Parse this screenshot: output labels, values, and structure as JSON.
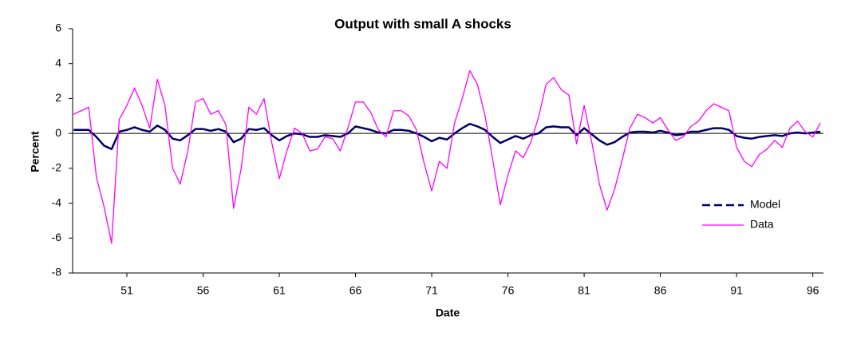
{
  "chart_data": {
    "type": "line",
    "title": "Output with small A shocks",
    "x_label": "Date",
    "y_label": "Percent",
    "x": [
      47.5,
      48,
      48.5,
      49,
      49.5,
      50,
      50.5,
      51,
      51.5,
      52,
      52.5,
      53,
      53.5,
      54,
      54.5,
      55,
      55.5,
      56,
      56.5,
      57,
      57.5,
      58,
      58.5,
      59,
      59.5,
      60,
      60.5,
      61,
      61.5,
      62,
      62.5,
      63,
      63.5,
      64,
      64.5,
      65,
      65.5,
      66,
      66.5,
      67,
      67.5,
      68,
      68.5,
      69,
      69.5,
      70,
      70.5,
      71,
      71.5,
      72,
      72.5,
      73,
      73.5,
      74,
      74.5,
      75,
      75.5,
      76,
      76.5,
      77,
      77.5,
      78,
      78.5,
      79,
      79.5,
      80,
      80.5,
      81,
      81.5,
      82,
      82.5,
      83,
      83.5,
      84,
      84.5,
      85,
      85.5,
      86,
      86.5,
      87,
      87.5,
      88,
      88.5,
      89,
      89.5,
      90,
      90.5,
      91,
      91.5,
      92,
      92.5,
      93,
      93.5,
      94,
      94.5,
      95,
      95.5,
      96,
      96.5
    ],
    "series": [
      {
        "name": "Model",
        "color": "#000066",
        "values": [
          0.2,
          0.2,
          0.2,
          -0.2,
          -0.7,
          -0.9,
          0.1,
          0.2,
          0.35,
          0.2,
          0.1,
          0.45,
          0.2,
          -0.3,
          -0.4,
          -0.1,
          0.25,
          0.25,
          0.15,
          0.25,
          0.1,
          -0.5,
          -0.3,
          0.25,
          0.2,
          0.3,
          -0.1,
          -0.4,
          -0.15,
          0.0,
          -0.05,
          -0.2,
          -0.2,
          -0.1,
          -0.15,
          -0.2,
          0.0,
          0.4,
          0.3,
          0.2,
          0.05,
          0.0,
          0.2,
          0.2,
          0.15,
          0.0,
          -0.2,
          -0.45,
          -0.25,
          -0.35,
          0.0,
          0.3,
          0.55,
          0.4,
          0.2,
          -0.2,
          -0.55,
          -0.35,
          -0.15,
          -0.3,
          -0.1,
          0.0,
          0.35,
          0.4,
          0.35,
          0.35,
          -0.1,
          0.3,
          -0.05,
          -0.4,
          -0.65,
          -0.5,
          -0.2,
          0.05,
          0.1,
          0.1,
          0.05,
          0.15,
          0.05,
          -0.1,
          -0.05,
          0.1,
          0.1,
          0.2,
          0.3,
          0.3,
          0.2,
          -0.15,
          -0.25,
          -0.3,
          -0.2,
          -0.15,
          -0.1,
          -0.15,
          0.0,
          0.05,
          0.0,
          0.05,
          0.1
        ]
      },
      {
        "name": "Data",
        "color": "#ff00ff",
        "values": [
          1.1,
          1.3,
          1.5,
          -2.5,
          -4.2,
          -6.3,
          0.8,
          1.6,
          2.6,
          1.6,
          0.3,
          3.1,
          1.6,
          -2.0,
          -2.9,
          -1.0,
          1.8,
          2.0,
          1.1,
          1.3,
          0.5,
          -4.3,
          -2.0,
          1.5,
          1.1,
          2.0,
          -0.5,
          -2.6,
          -1.0,
          0.3,
          0.0,
          -1.0,
          -0.9,
          -0.2,
          -0.3,
          -1.0,
          0.3,
          1.8,
          1.8,
          1.2,
          0.2,
          -0.2,
          1.3,
          1.3,
          1.0,
          0.2,
          -1.7,
          -3.3,
          -1.6,
          -2.0,
          0.6,
          2.0,
          3.6,
          2.8,
          1.0,
          -1.5,
          -4.1,
          -2.4,
          -1.0,
          -1.4,
          -0.5,
          0.9,
          2.8,
          3.2,
          2.5,
          2.2,
          -0.6,
          1.6,
          -0.5,
          -2.9,
          -4.4,
          -3.2,
          -1.5,
          0.3,
          1.1,
          0.9,
          0.6,
          0.9,
          0.2,
          -0.4,
          -0.2,
          0.4,
          0.7,
          1.3,
          1.7,
          1.5,
          1.3,
          -0.8,
          -1.6,
          -1.9,
          -1.2,
          -0.9,
          -0.4,
          -0.8,
          0.3,
          0.7,
          0.1,
          -0.2,
          0.6
        ]
      }
    ],
    "xlim": [
      47.44,
      96.7
    ],
    "xticks": [
      51,
      56,
      61,
      66,
      71,
      76,
      81,
      86,
      91,
      96
    ],
    "ylim": [
      -8,
      6
    ],
    "yticks": [
      -8,
      -6,
      -4,
      -2,
      0,
      2,
      4,
      6
    ],
    "grid": false,
    "legend": "right"
  }
}
